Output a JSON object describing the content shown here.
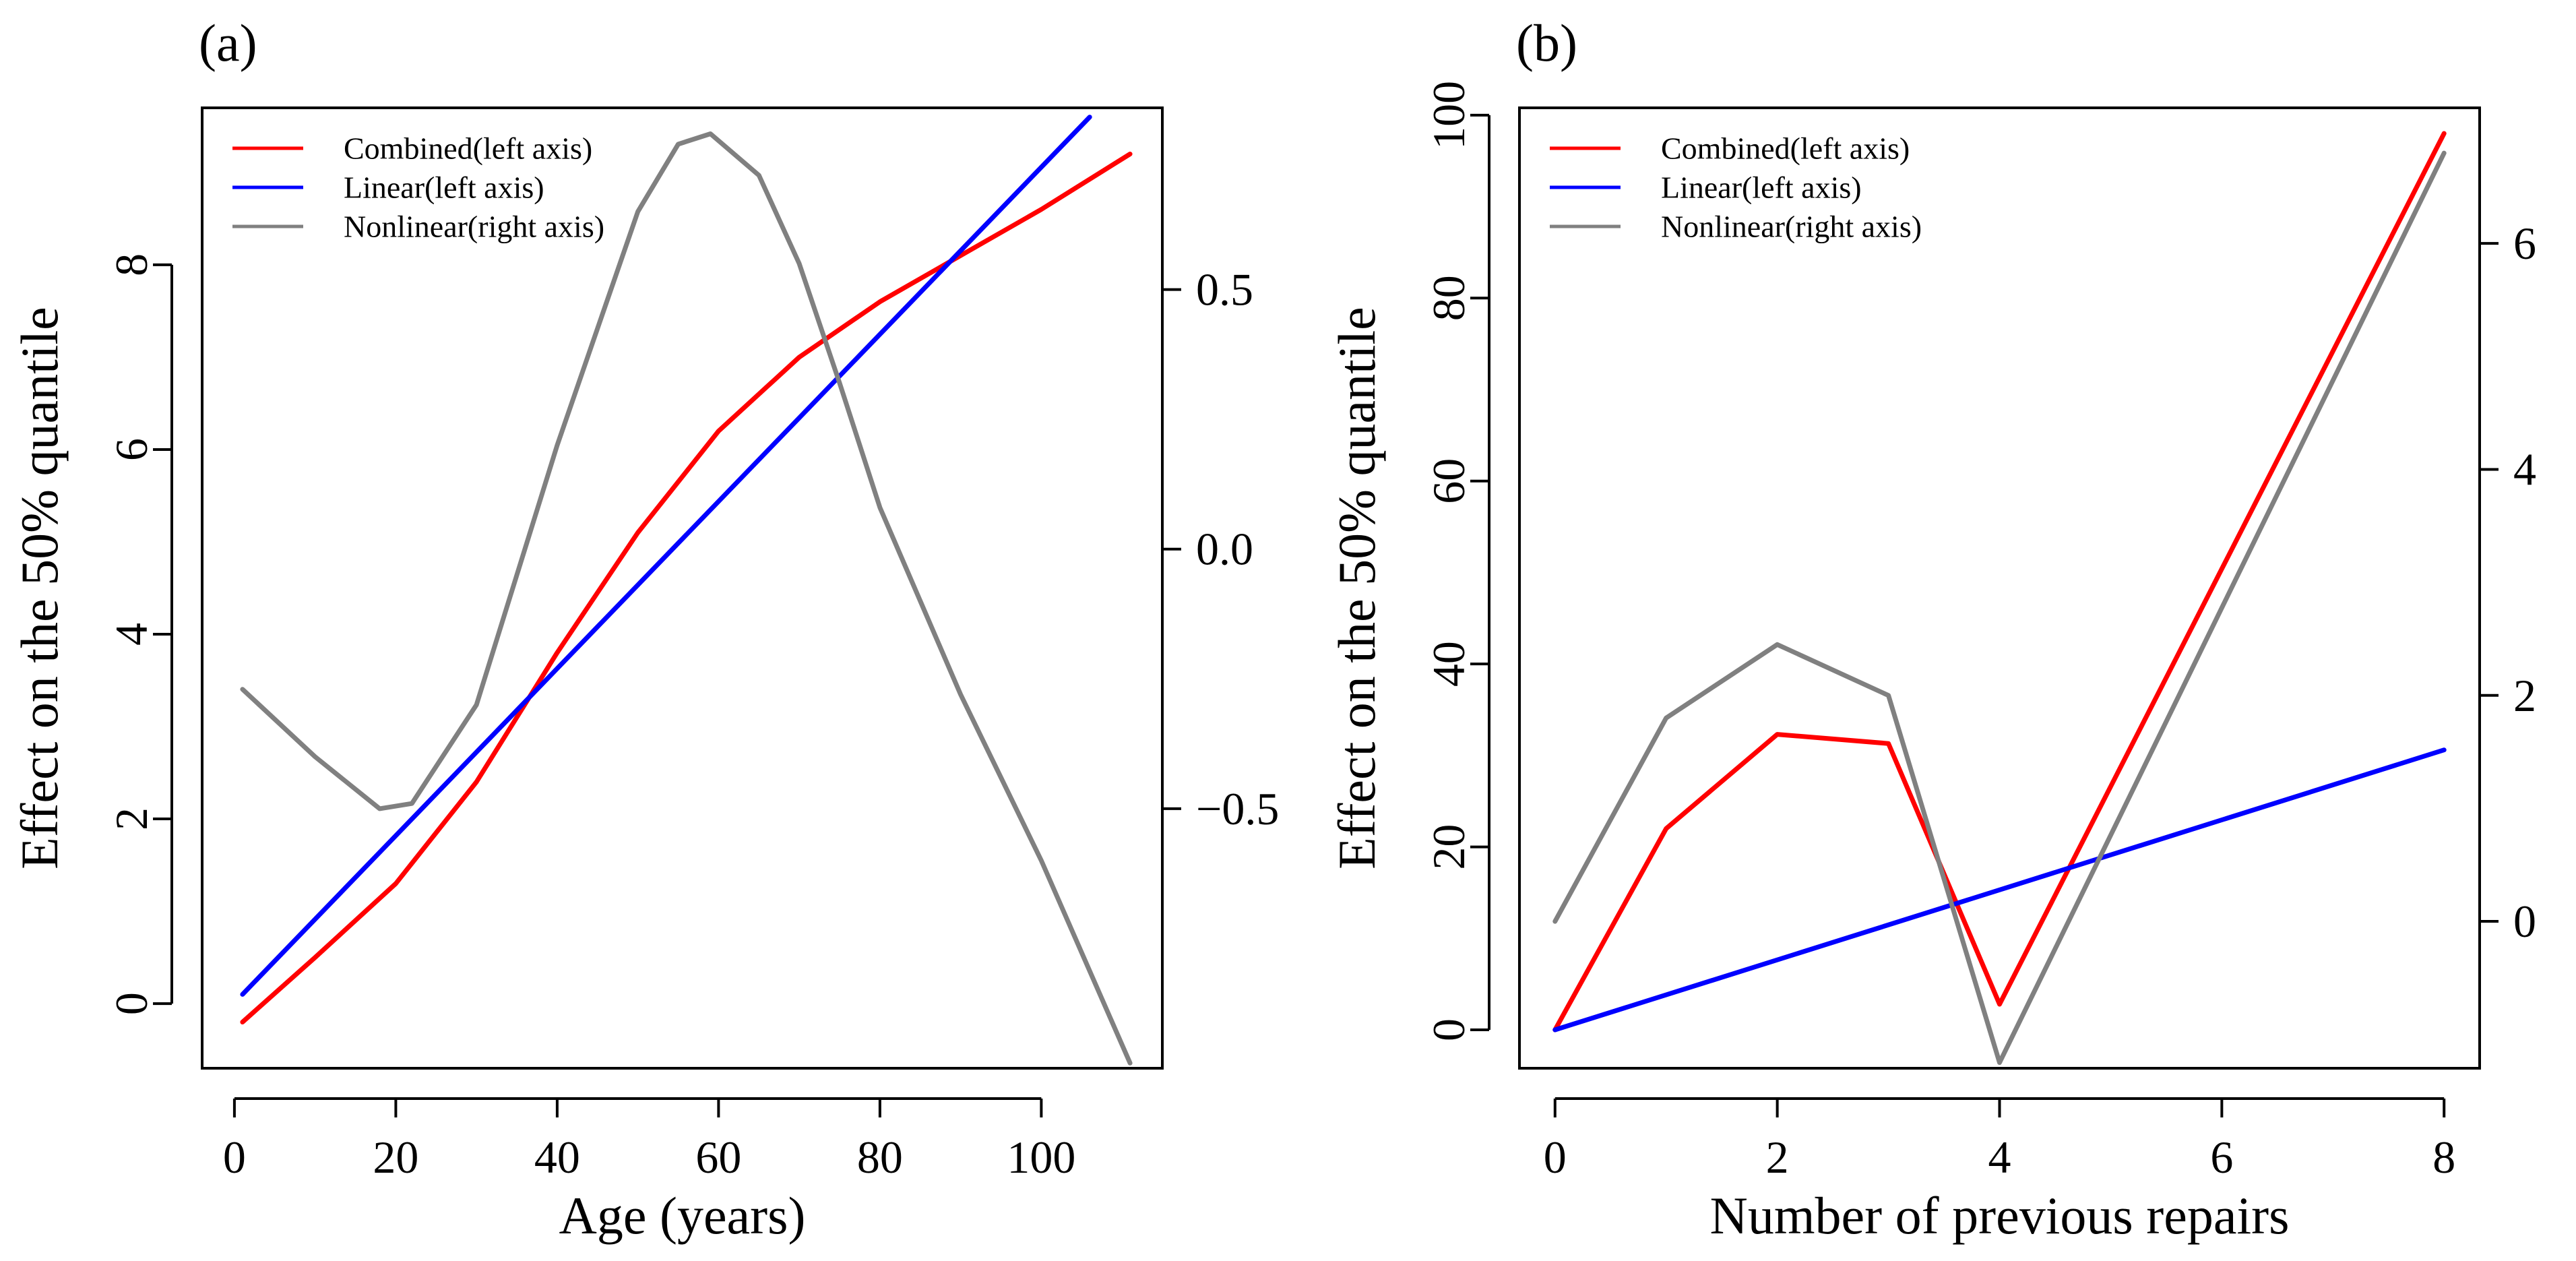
{
  "chart_data": [
    {
      "type": "line",
      "panel_label": "(a)",
      "xlabel": "Age (years)",
      "ylabel": "Effect on the 50% quantile",
      "xlim": [
        -4,
        115
      ],
      "ylim": [
        -0.7,
        9.7
      ],
      "y2lim": [
        -1.0,
        0.85
      ],
      "x_ticks": [
        "0",
        "20",
        "40",
        "60",
        "80",
        "100"
      ],
      "y_ticks": [
        "0",
        "2",
        "4",
        "6",
        "8"
      ],
      "y2_ticks": [
        "0.5",
        "0.0",
        "−0.5"
      ],
      "legend": [
        "Combined(left axis)",
        "Linear(left axis)",
        "Nonlinear(right axis)"
      ],
      "series": [
        {
          "name": "Combined(left axis)",
          "axis": "left",
          "color": "#ff0000",
          "x": [
            1,
            10,
            20,
            30,
            40,
            50,
            60,
            70,
            80,
            90,
            100,
            111
          ],
          "y": [
            -0.2,
            0.5,
            1.3,
            2.4,
            3.8,
            5.1,
            6.2,
            7.0,
            7.6,
            8.1,
            8.6,
            9.2
          ]
        },
        {
          "name": "Linear(left axis)",
          "axis": "left",
          "color": "#0000ff",
          "x": [
            1,
            106
          ],
          "y": [
            0.1,
            9.6
          ]
        },
        {
          "name": "Nonlinear(right axis)",
          "axis": "right",
          "color": "#808080",
          "x": [
            1,
            10,
            18,
            22,
            30,
            40,
            50,
            55,
            59,
            65,
            70,
            75,
            80,
            85,
            90,
            100,
            111
          ],
          "y": [
            -0.27,
            -0.4,
            -0.5,
            -0.49,
            -0.3,
            0.2,
            0.65,
            0.78,
            0.8,
            0.72,
            0.55,
            0.32,
            0.08,
            -0.1,
            -0.28,
            -0.6,
            -0.99
          ]
        }
      ]
    },
    {
      "type": "line",
      "panel_label": "(b)",
      "xlabel": "Number of previous repairs",
      "ylabel": "Effect on the 50% quantile",
      "xlim": [
        -0.32,
        8.32
      ],
      "ylim": [
        -4.2,
        100.8
      ],
      "y2lim": [
        -1.3,
        7.2
      ],
      "x_ticks": [
        "0",
        "2",
        "4",
        "6",
        "8"
      ],
      "y_ticks": [
        "0",
        "20",
        "40",
        "60",
        "80",
        "100"
      ],
      "y2_ticks": [
        "6",
        "4",
        "2",
        "0"
      ],
      "legend": [
        "Combined(left axis)",
        "Linear(left axis)",
        "Nonlinear(right axis)"
      ],
      "series": [
        {
          "name": "Combined(left axis)",
          "axis": "left",
          "color": "#ff0000",
          "x": [
            0,
            1,
            2,
            3,
            4,
            8
          ],
          "y": [
            0,
            22,
            32.3,
            31.3,
            2.8,
            98
          ]
        },
        {
          "name": "Linear(left axis)",
          "axis": "left",
          "color": "#0000ff",
          "x": [
            0,
            8
          ],
          "y": [
            0,
            30.6
          ]
        },
        {
          "name": "Nonlinear(right axis)",
          "axis": "right",
          "color": "#808080",
          "x": [
            0,
            1,
            2,
            3,
            4,
            8
          ],
          "y": [
            0.0,
            1.8,
            2.45,
            2.0,
            -1.25,
            6.8
          ]
        }
      ]
    }
  ]
}
